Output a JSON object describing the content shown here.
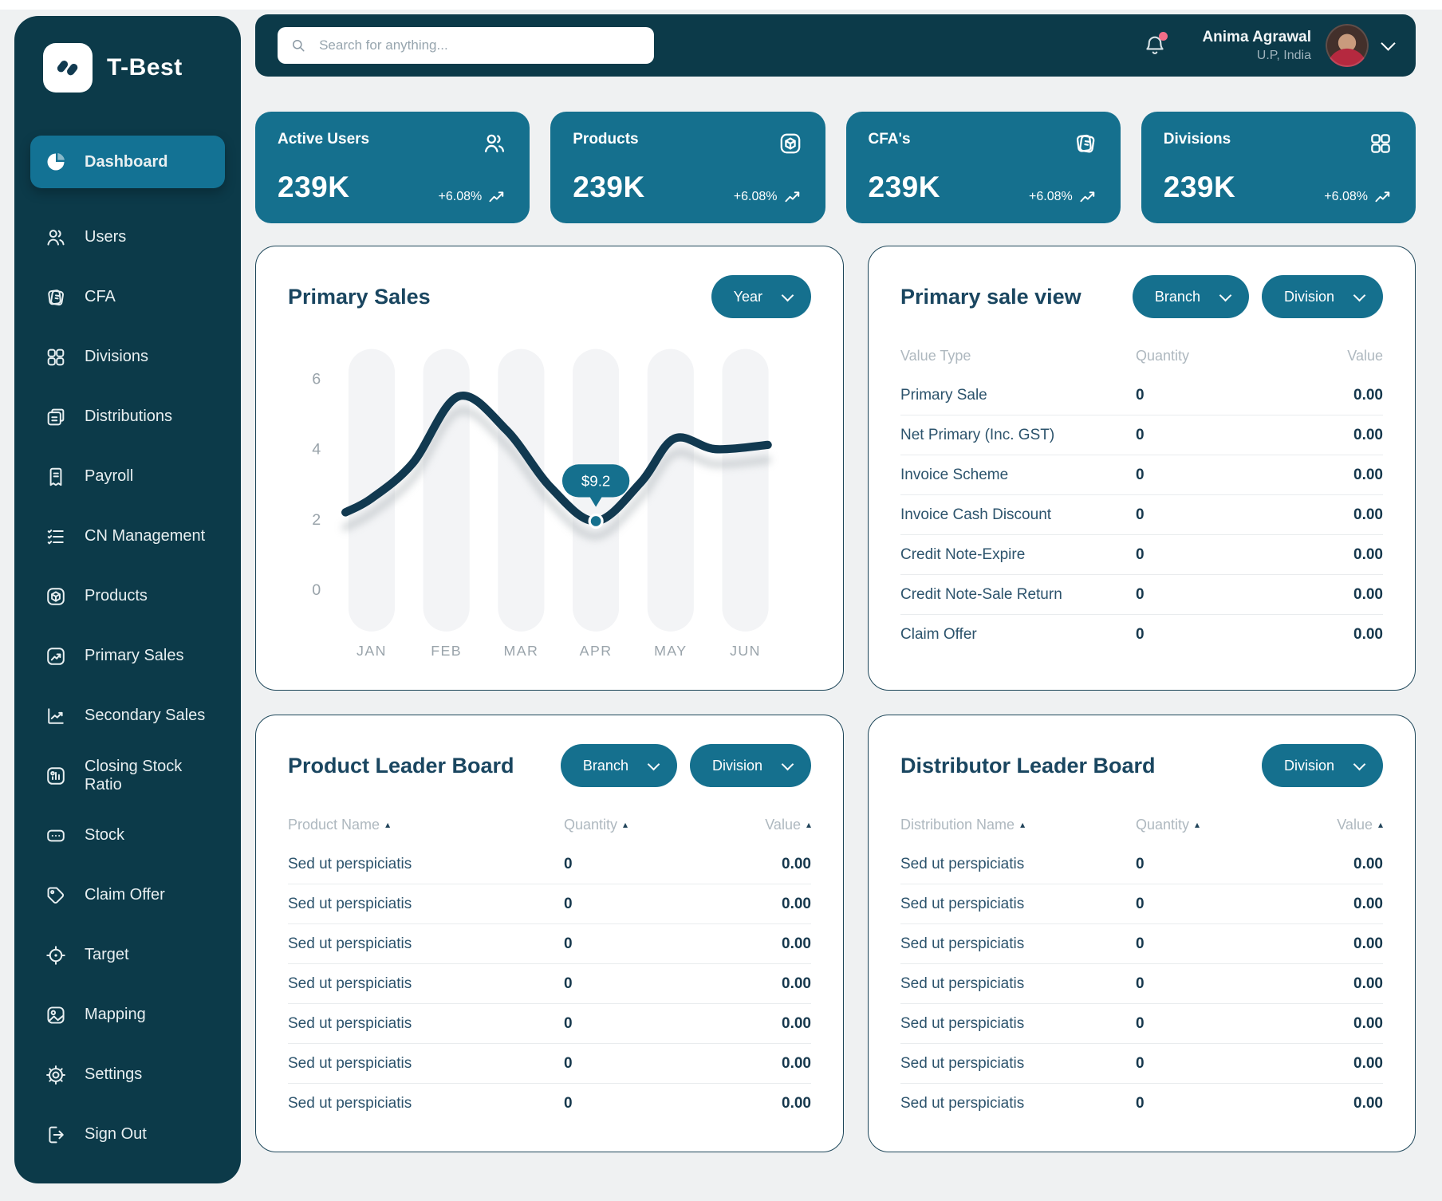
{
  "app": {
    "name": "T-Best"
  },
  "sidebar": {
    "items": [
      {
        "label": "Dashboard",
        "icon": "dashboard-icon",
        "active": true
      },
      {
        "label": "Users",
        "icon": "users-icon"
      },
      {
        "label": "CFA",
        "icon": "cfa-icon"
      },
      {
        "label": "Divisions",
        "icon": "divisions-icon"
      },
      {
        "label": "Distributions",
        "icon": "distributions-icon"
      },
      {
        "label": "Payroll",
        "icon": "payroll-icon"
      },
      {
        "label": "CN Management",
        "icon": "cn-management-icon"
      },
      {
        "label": "Products",
        "icon": "products-icon"
      },
      {
        "label": "Primary Sales",
        "icon": "primary-sales-icon"
      },
      {
        "label": "Secondary Sales",
        "icon": "secondary-sales-icon"
      },
      {
        "label": "Closing Stock Ratio",
        "icon": "closing-stock-ratio-icon"
      },
      {
        "label": "Stock",
        "icon": "stock-icon"
      },
      {
        "label": "Claim Offer",
        "icon": "claim-offer-icon"
      },
      {
        "label": "Target",
        "icon": "target-icon"
      },
      {
        "label": "Mapping",
        "icon": "mapping-icon"
      },
      {
        "label": "Settings",
        "icon": "settings-icon"
      },
      {
        "label": "Sign Out",
        "icon": "sign-out-icon"
      }
    ]
  },
  "topbar": {
    "search_placeholder": "Search for anything...",
    "notifications": {
      "has_unread": true
    },
    "user": {
      "name": "Anima Agrawal",
      "location": "U.P, India"
    }
  },
  "stats": [
    {
      "label": "Active Users",
      "value": "239K",
      "change": "+6.08%",
      "icon": "active-users-icon"
    },
    {
      "label": "Products",
      "value": "239K",
      "change": "+6.08%",
      "icon": "products-stat-icon"
    },
    {
      "label": "CFA's",
      "value": "239K",
      "change": "+6.08%",
      "icon": "cfa-stat-icon"
    },
    {
      "label": "Divisions",
      "value": "239K",
      "change": "+6.08%",
      "icon": "divisions-stat-icon"
    }
  ],
  "primary_sales": {
    "title": "Primary Sales",
    "filter_label": "Year"
  },
  "chart_data": {
    "type": "line",
    "title": "Primary Sales",
    "x_labels": [
      "JAN",
      "FEB",
      "MAR",
      "APR",
      "MAY",
      "JUN"
    ],
    "y_ticks": [
      0,
      2,
      4,
      6
    ],
    "ylim": [
      0,
      6.5
    ],
    "grid": "column-bands",
    "legend": false,
    "series": [
      {
        "name": "Primary Sales",
        "smooth_points": [
          [
            -0.35,
            2.2
          ],
          [
            0,
            2.6
          ],
          [
            0.55,
            3.6
          ],
          [
            1.16,
            5.5
          ],
          [
            1.8,
            4.55
          ],
          [
            2.4,
            2.9
          ],
          [
            3,
            1.95
          ],
          [
            3.6,
            3.05
          ],
          [
            4.05,
            4.3
          ],
          [
            4.6,
            4.0
          ],
          [
            5.3,
            4.12
          ]
        ]
      }
    ],
    "tooltip": {
      "label": "$9.2",
      "x": 3,
      "y": 1.95
    }
  },
  "primary_sale_view": {
    "title": "Primary sale view",
    "filters": [
      "Branch",
      "Division"
    ],
    "columns": [
      "Value Type",
      "Quantity",
      "Value"
    ],
    "sortable": false,
    "rows": [
      {
        "name": "Primary Sale",
        "quantity": "0",
        "value": "0.00"
      },
      {
        "name": "Net Primary (Inc. GST)",
        "quantity": "0",
        "value": "0.00"
      },
      {
        "name": "Invoice Scheme",
        "quantity": "0",
        "value": "0.00"
      },
      {
        "name": "Invoice Cash Discount",
        "quantity": "0",
        "value": "0.00"
      },
      {
        "name": "Credit Note-Expire",
        "quantity": "0",
        "value": "0.00"
      },
      {
        "name": "Credit Note-Sale Return",
        "quantity": "0",
        "value": "0.00"
      },
      {
        "name": "Claim Offer",
        "quantity": "0",
        "value": "0.00"
      }
    ]
  },
  "product_leader_board": {
    "title": "Product Leader Board",
    "filters": [
      "Branch",
      "Division"
    ],
    "columns": [
      "Product Name",
      "Quantity",
      "Value"
    ],
    "sortable": true,
    "rows": [
      {
        "name": "Sed ut perspiciatis",
        "quantity": "0",
        "value": "0.00"
      },
      {
        "name": "Sed ut perspiciatis",
        "quantity": "0",
        "value": "0.00"
      },
      {
        "name": "Sed ut perspiciatis",
        "quantity": "0",
        "value": "0.00"
      },
      {
        "name": "Sed ut perspiciatis",
        "quantity": "0",
        "value": "0.00"
      },
      {
        "name": "Sed ut perspiciatis",
        "quantity": "0",
        "value": "0.00"
      },
      {
        "name": "Sed ut perspiciatis",
        "quantity": "0",
        "value": "0.00"
      },
      {
        "name": "Sed ut perspiciatis",
        "quantity": "0",
        "value": "0.00"
      }
    ]
  },
  "distributor_leader_board": {
    "title": "Distributor Leader Board",
    "filters": [
      "Division"
    ],
    "columns": [
      "Distribution Name",
      "Quantity",
      "Value"
    ],
    "sortable": true,
    "rows": [
      {
        "name": "Sed ut perspiciatis",
        "quantity": "0",
        "value": "0.00"
      },
      {
        "name": "Sed ut perspiciatis",
        "quantity": "0",
        "value": "0.00"
      },
      {
        "name": "Sed ut perspiciatis",
        "quantity": "0",
        "value": "0.00"
      },
      {
        "name": "Sed ut perspiciatis",
        "quantity": "0",
        "value": "0.00"
      },
      {
        "name": "Sed ut perspiciatis",
        "quantity": "0",
        "value": "0.00"
      },
      {
        "name": "Sed ut perspiciatis",
        "quantity": "0",
        "value": "0.00"
      },
      {
        "name": "Sed ut perspiciatis",
        "quantity": "0",
        "value": "0.00"
      }
    ]
  },
  "colors": {
    "sidebar": "#0C3A49",
    "accent": "#15708E",
    "accent_active": "#137294",
    "title": "#1A4660",
    "line": "#113950",
    "band": "#F3F4F6",
    "notification_dot": "#F26D88"
  }
}
